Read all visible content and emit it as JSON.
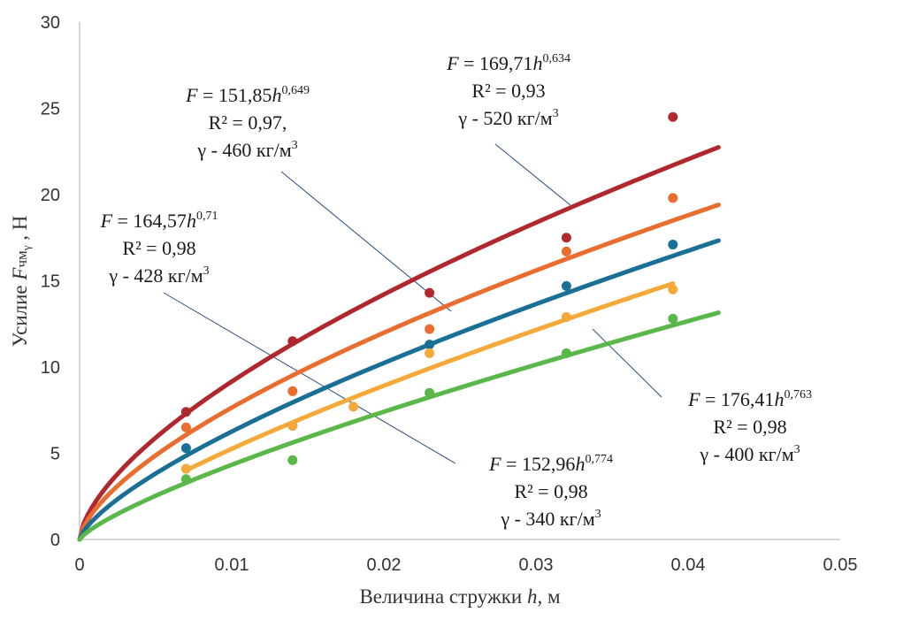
{
  "chart_data": {
    "type": "scatter",
    "title": "",
    "xlabel": "Величина стружки h, м",
    "ylabel": "Усилие Fчмγ , Н",
    "xlim": [
      0,
      0.05
    ],
    "ylim": [
      0,
      30
    ],
    "xticks": [
      "0",
      "0.01",
      "0.02",
      "0.03",
      "0.04",
      "0.05"
    ],
    "yticks": [
      "0",
      "5",
      "10",
      "15",
      "20",
      "25",
      "30"
    ],
    "grid": false,
    "series": [
      {
        "name": "γ - 520 кг/м3",
        "color": "#B0272E",
        "coef": 169.71,
        "exp": 0.634,
        "x_max": 0.042,
        "x": [
          0.007,
          0.014,
          0.023,
          0.032,
          0.039
        ],
        "y": [
          7.4,
          11.5,
          14.3,
          17.5,
          24.5
        ]
      },
      {
        "name": "γ - 460 кг/м3",
        "color": "#E86D2E",
        "coef": 151.85,
        "exp": 0.649,
        "x_max": 0.042,
        "x": [
          0.007,
          0.014,
          0.023,
          0.032,
          0.039
        ],
        "y": [
          6.5,
          8.6,
          12.2,
          16.7,
          19.8
        ]
      },
      {
        "name": "γ - 428 кг/м3",
        "color": "#1A6F96",
        "coef": 164.57,
        "exp": 0.71,
        "x_max": 0.042,
        "x": [
          0.007,
          0.014,
          0.023,
          0.032,
          0.039
        ],
        "y": [
          5.3,
          6.6,
          11.3,
          14.7,
          17.1
        ]
      },
      {
        "name": "γ - 400 кг/м3",
        "color": "#F5A93A",
        "coef": 176.41,
        "exp": 0.763,
        "x_min": 0.007,
        "x_max": 0.039,
        "x": [
          0.007,
          0.014,
          0.018,
          0.023,
          0.032,
          0.039
        ],
        "y": [
          4.1,
          6.6,
          7.7,
          10.8,
          12.9,
          14.5
        ]
      },
      {
        "name": "γ - 340 кг/м3",
        "color": "#59B849",
        "coef": 152.96,
        "exp": 0.774,
        "x_max": 0.042,
        "x": [
          0.007,
          0.014,
          0.023,
          0.032,
          0.039
        ],
        "y": [
          3.5,
          4.6,
          8.5,
          10.8,
          12.8
        ]
      }
    ],
    "annotations": [
      {
        "F": "F",
        "eq": " = 169,71",
        "h": "h",
        "pow": "0,634",
        "r2": "R² = 0,93",
        "gamma": "γ - 520 кг/м",
        "unit_pow": "3"
      },
      {
        "F": "F",
        "eq": " = 151,85",
        "h": "h",
        "pow": "0,649",
        "r2": "R² = 0,97,",
        "gamma": "γ - 460 кг/м",
        "unit_pow": "3"
      },
      {
        "F": "F",
        "eq": " = 164,57",
        "h": "h",
        "pow": "0,71",
        "r2": "R² = 0,98",
        "gamma": "γ - 428 кг/м",
        "unit_pow": "3"
      },
      {
        "F": "F",
        "eq": " = 176,41",
        "h": "h",
        "pow": "0,763",
        "r2": "R² = 0,98",
        "gamma": "γ - 400 кг/м",
        "unit_pow": "3"
      },
      {
        "F": "F",
        "eq": " = 152,96",
        "h": "h",
        "pow": "0,774",
        "r2": "R² = 0,98",
        "gamma": "γ - 340 кг/м",
        "unit_pow": "3"
      }
    ],
    "axis_labels": {
      "x_main": "Величина стружки ",
      "x_var": "h",
      "x_unit": ", м",
      "y_main": "Усилие ",
      "y_var": "F",
      "y_sub": "чм",
      "y_subsub": "γ",
      "y_unit": " , Н"
    }
  }
}
